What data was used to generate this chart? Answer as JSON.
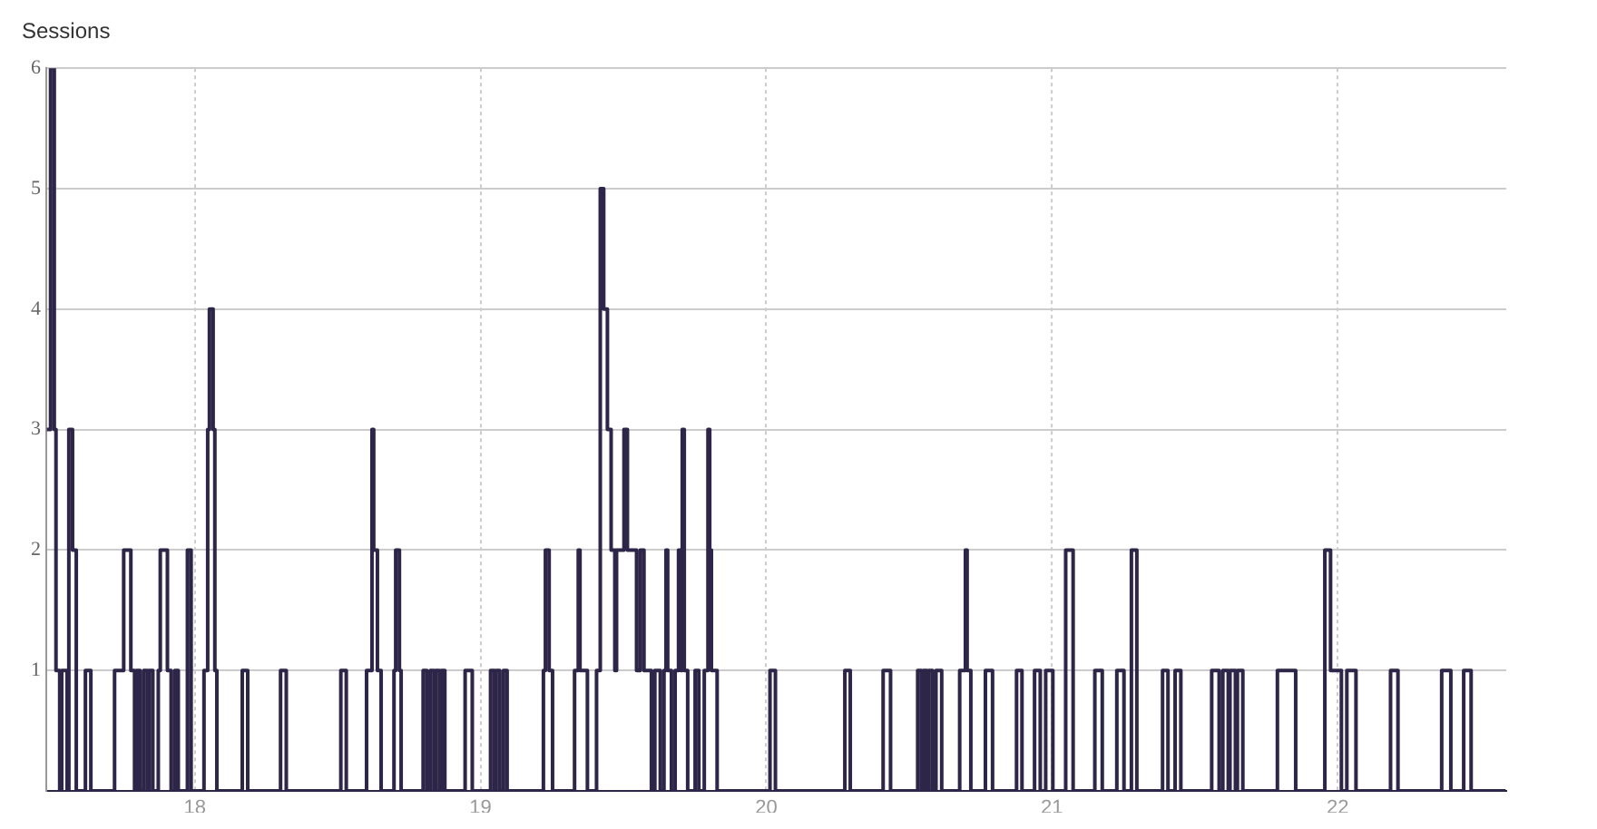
{
  "chart_data": {
    "type": "step",
    "title": "Sessions",
    "xlim": [
      17.48,
      22.59
    ],
    "xticks": [
      18,
      19,
      20,
      21,
      22
    ],
    "ylim": [
      0,
      6
    ],
    "yticks": [
      1,
      2,
      3,
      4,
      5,
      6
    ],
    "grid": true,
    "legend": false,
    "marker": "none",
    "line_style": "solid",
    "series": [
      {
        "color": "#2e2648",
        "x": [
          17.482,
          17.495,
          17.508,
          17.514,
          17.527,
          17.534,
          17.553,
          17.559,
          17.572,
          17.585,
          17.617,
          17.636,
          17.719,
          17.751,
          17.776,
          17.789,
          17.796,
          17.808,
          17.821,
          17.834,
          17.84,
          17.853,
          17.872,
          17.879,
          17.904,
          17.917,
          17.93,
          17.942,
          17.974,
          17.987,
          18.032,
          18.045,
          18.051,
          18.064,
          18.07,
          18.077,
          18.166,
          18.185,
          18.3,
          18.32,
          18.511,
          18.53,
          18.601,
          18.62,
          18.626,
          18.639,
          18.652,
          18.697,
          18.703,
          18.716,
          18.722,
          18.799,
          18.812,
          18.824,
          18.837,
          18.843,
          18.856,
          18.863,
          18.875,
          18.946,
          18.971,
          19.035,
          19.048,
          19.054,
          19.067,
          19.08,
          19.093,
          19.22,
          19.227,
          19.24,
          19.252,
          19.329,
          19.342,
          19.348,
          19.374,
          19.406,
          19.419,
          19.431,
          19.444,
          19.457,
          19.47,
          19.476,
          19.502,
          19.514,
          19.546,
          19.559,
          19.572,
          19.598,
          19.61,
          19.629,
          19.642,
          19.649,
          19.655,
          19.668,
          19.681,
          19.693,
          19.7,
          19.706,
          19.713,
          19.725,
          19.751,
          19.764,
          19.783,
          19.796,
          19.802,
          19.808,
          19.828,
          20.013,
          20.032,
          20.275,
          20.294,
          20.409,
          20.435,
          20.53,
          20.543,
          20.55,
          20.562,
          20.569,
          20.582,
          20.594,
          20.614,
          20.677,
          20.697,
          20.703,
          20.716,
          20.767,
          20.792,
          20.876,
          20.895,
          20.939,
          20.959,
          20.978,
          21.003,
          21.048,
          21.074,
          21.15,
          21.176,
          21.227,
          21.252,
          21.278,
          21.297,
          21.387,
          21.406,
          21.431,
          21.451,
          21.559,
          21.585,
          21.598,
          21.617,
          21.623,
          21.642,
          21.649,
          21.668,
          21.789,
          21.853,
          21.955,
          21.975,
          22.013,
          22.032,
          22.064,
          22.185,
          22.211,
          22.364,
          22.396,
          22.441,
          22.467,
          22.588
        ],
        "values": [
          3,
          6,
          3,
          1,
          0,
          1,
          0,
          3,
          2,
          0,
          1,
          0,
          1,
          2,
          1,
          0,
          1,
          0,
          1,
          0,
          1,
          0,
          1,
          2,
          1,
          0,
          1,
          0,
          2,
          0,
          1,
          3,
          4,
          3,
          1,
          0,
          1,
          0,
          1,
          0,
          1,
          0,
          1,
          3,
          2,
          1,
          0,
          1,
          2,
          1,
          0,
          1,
          0,
          1,
          0,
          1,
          0,
          1,
          0,
          1,
          0,
          1,
          0,
          1,
          0,
          1,
          0,
          1,
          2,
          1,
          0,
          1,
          2,
          1,
          0,
          1,
          5,
          4,
          3,
          2,
          1,
          2,
          3,
          2,
          1,
          2,
          1,
          0,
          1,
          0,
          1,
          2,
          1,
          0,
          1,
          2,
          1,
          3,
          1,
          0,
          1,
          0,
          1,
          3,
          2,
          1,
          0,
          1,
          0,
          1,
          0,
          1,
          0,
          1,
          0,
          1,
          0,
          1,
          0,
          1,
          0,
          1,
          2,
          1,
          0,
          1,
          0,
          1,
          0,
          1,
          0,
          1,
          0,
          2,
          0,
          1,
          0,
          1,
          0,
          2,
          0,
          1,
          0,
          1,
          0,
          1,
          0,
          1,
          0,
          1,
          0,
          1,
          0,
          1,
          0,
          2,
          1,
          0,
          1,
          0,
          1,
          0,
          1,
          0,
          1,
          0,
          0
        ]
      }
    ]
  }
}
